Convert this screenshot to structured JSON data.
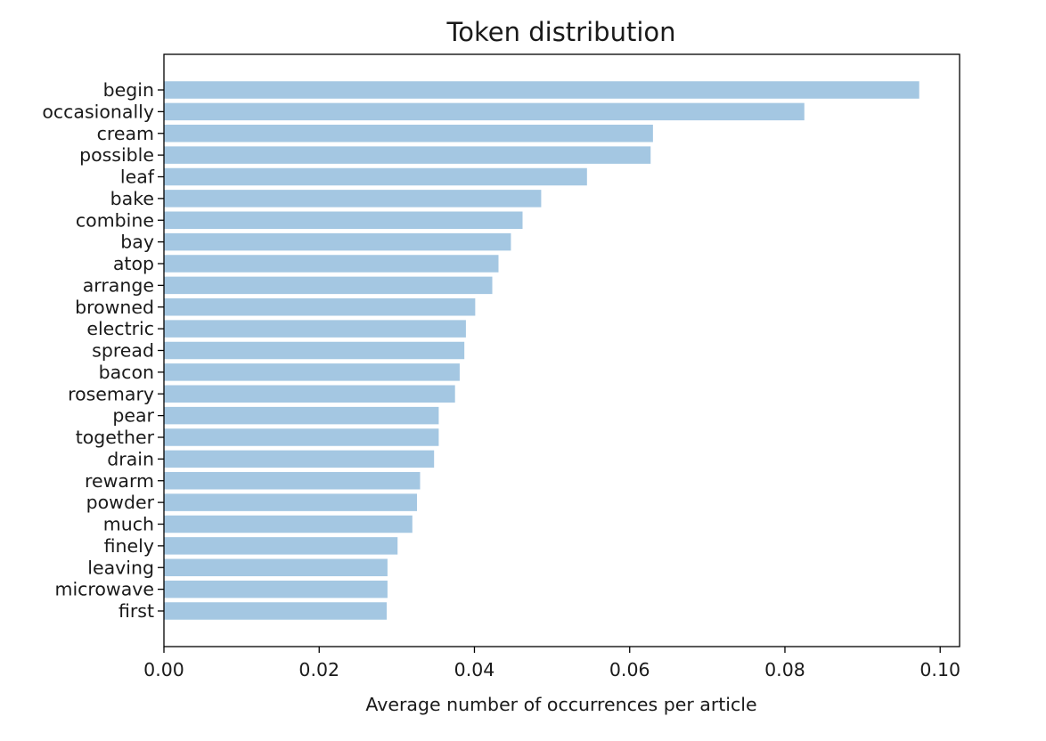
{
  "chart_data": {
    "type": "bar",
    "orientation": "horizontal",
    "title": "Token distribution",
    "xlabel": "Average number of occurrences per article",
    "ylabel": "",
    "xlim": [
      0,
      0.1025
    ],
    "xticks": [
      0.0,
      0.02,
      0.04,
      0.06,
      0.08,
      0.1
    ],
    "xtick_labels": [
      "0.00",
      "0.02",
      "0.04",
      "0.06",
      "0.08",
      "0.10"
    ],
    "grid": false,
    "bar_color": "#a4c7e2",
    "categories": [
      "begin",
      "occasionally",
      "cream",
      "possible",
      "leaf",
      "bake",
      "combine",
      "bay",
      "atop",
      "arrange",
      "browned",
      "electric",
      "spread",
      "bacon",
      "rosemary",
      "pear",
      "together",
      "drain",
      "rewarm",
      "powder",
      "much",
      "finely",
      "leaving",
      "microwave",
      "first"
    ],
    "values": [
      0.0973,
      0.0825,
      0.063,
      0.0627,
      0.0545,
      0.0486,
      0.0462,
      0.0447,
      0.0431,
      0.0423,
      0.0401,
      0.0389,
      0.0387,
      0.0381,
      0.0375,
      0.0354,
      0.0354,
      0.0348,
      0.033,
      0.0326,
      0.032,
      0.0301,
      0.0288,
      0.0288,
      0.0287
    ]
  }
}
